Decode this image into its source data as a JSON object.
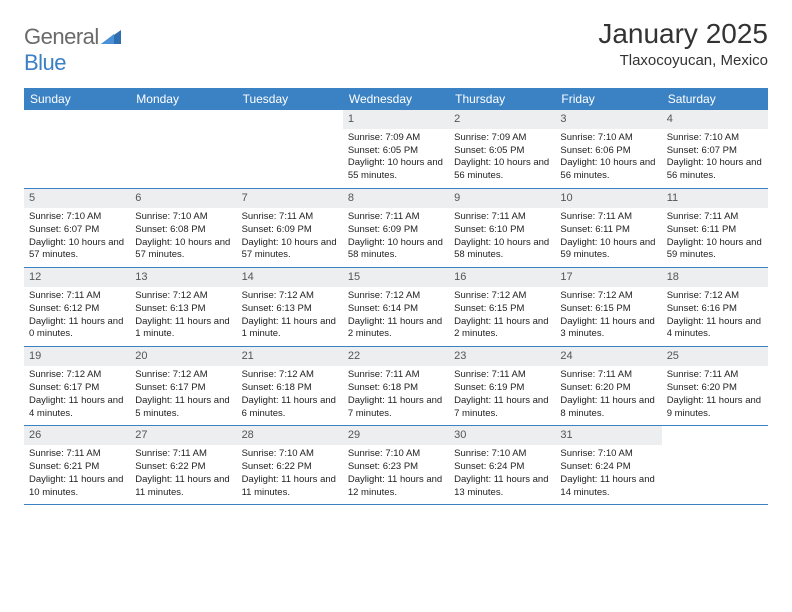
{
  "brand": {
    "part1": "General",
    "part2": "Blue"
  },
  "title": "January 2025",
  "location": "Tlaxocoyucan, Mexico",
  "colors": {
    "header_bg": "#3b82c4",
    "header_text": "#ffffff",
    "daynum_bg": "#eceeef",
    "daynum_text": "#555555",
    "border": "#3b82c4",
    "logo_gray": "#6a6a6a",
    "logo_blue": "#3b7fc4"
  },
  "weekdays": [
    "Sunday",
    "Monday",
    "Tuesday",
    "Wednesday",
    "Thursday",
    "Friday",
    "Saturday"
  ],
  "weeks": [
    [
      null,
      null,
      null,
      {
        "n": "1",
        "sr": "Sunrise: 7:09 AM",
        "ss": "Sunset: 6:05 PM",
        "dl": "Daylight: 10 hours and 55 minutes."
      },
      {
        "n": "2",
        "sr": "Sunrise: 7:09 AM",
        "ss": "Sunset: 6:05 PM",
        "dl": "Daylight: 10 hours and 56 minutes."
      },
      {
        "n": "3",
        "sr": "Sunrise: 7:10 AM",
        "ss": "Sunset: 6:06 PM",
        "dl": "Daylight: 10 hours and 56 minutes."
      },
      {
        "n": "4",
        "sr": "Sunrise: 7:10 AM",
        "ss": "Sunset: 6:07 PM",
        "dl": "Daylight: 10 hours and 56 minutes."
      }
    ],
    [
      {
        "n": "5",
        "sr": "Sunrise: 7:10 AM",
        "ss": "Sunset: 6:07 PM",
        "dl": "Daylight: 10 hours and 57 minutes."
      },
      {
        "n": "6",
        "sr": "Sunrise: 7:10 AM",
        "ss": "Sunset: 6:08 PM",
        "dl": "Daylight: 10 hours and 57 minutes."
      },
      {
        "n": "7",
        "sr": "Sunrise: 7:11 AM",
        "ss": "Sunset: 6:09 PM",
        "dl": "Daylight: 10 hours and 57 minutes."
      },
      {
        "n": "8",
        "sr": "Sunrise: 7:11 AM",
        "ss": "Sunset: 6:09 PM",
        "dl": "Daylight: 10 hours and 58 minutes."
      },
      {
        "n": "9",
        "sr": "Sunrise: 7:11 AM",
        "ss": "Sunset: 6:10 PM",
        "dl": "Daylight: 10 hours and 58 minutes."
      },
      {
        "n": "10",
        "sr": "Sunrise: 7:11 AM",
        "ss": "Sunset: 6:11 PM",
        "dl": "Daylight: 10 hours and 59 minutes."
      },
      {
        "n": "11",
        "sr": "Sunrise: 7:11 AM",
        "ss": "Sunset: 6:11 PM",
        "dl": "Daylight: 10 hours and 59 minutes."
      }
    ],
    [
      {
        "n": "12",
        "sr": "Sunrise: 7:11 AM",
        "ss": "Sunset: 6:12 PM",
        "dl": "Daylight: 11 hours and 0 minutes."
      },
      {
        "n": "13",
        "sr": "Sunrise: 7:12 AM",
        "ss": "Sunset: 6:13 PM",
        "dl": "Daylight: 11 hours and 1 minute."
      },
      {
        "n": "14",
        "sr": "Sunrise: 7:12 AM",
        "ss": "Sunset: 6:13 PM",
        "dl": "Daylight: 11 hours and 1 minute."
      },
      {
        "n": "15",
        "sr": "Sunrise: 7:12 AM",
        "ss": "Sunset: 6:14 PM",
        "dl": "Daylight: 11 hours and 2 minutes."
      },
      {
        "n": "16",
        "sr": "Sunrise: 7:12 AM",
        "ss": "Sunset: 6:15 PM",
        "dl": "Daylight: 11 hours and 2 minutes."
      },
      {
        "n": "17",
        "sr": "Sunrise: 7:12 AM",
        "ss": "Sunset: 6:15 PM",
        "dl": "Daylight: 11 hours and 3 minutes."
      },
      {
        "n": "18",
        "sr": "Sunrise: 7:12 AM",
        "ss": "Sunset: 6:16 PM",
        "dl": "Daylight: 11 hours and 4 minutes."
      }
    ],
    [
      {
        "n": "19",
        "sr": "Sunrise: 7:12 AM",
        "ss": "Sunset: 6:17 PM",
        "dl": "Daylight: 11 hours and 4 minutes."
      },
      {
        "n": "20",
        "sr": "Sunrise: 7:12 AM",
        "ss": "Sunset: 6:17 PM",
        "dl": "Daylight: 11 hours and 5 minutes."
      },
      {
        "n": "21",
        "sr": "Sunrise: 7:12 AM",
        "ss": "Sunset: 6:18 PM",
        "dl": "Daylight: 11 hours and 6 minutes."
      },
      {
        "n": "22",
        "sr": "Sunrise: 7:11 AM",
        "ss": "Sunset: 6:18 PM",
        "dl": "Daylight: 11 hours and 7 minutes."
      },
      {
        "n": "23",
        "sr": "Sunrise: 7:11 AM",
        "ss": "Sunset: 6:19 PM",
        "dl": "Daylight: 11 hours and 7 minutes."
      },
      {
        "n": "24",
        "sr": "Sunrise: 7:11 AM",
        "ss": "Sunset: 6:20 PM",
        "dl": "Daylight: 11 hours and 8 minutes."
      },
      {
        "n": "25",
        "sr": "Sunrise: 7:11 AM",
        "ss": "Sunset: 6:20 PM",
        "dl": "Daylight: 11 hours and 9 minutes."
      }
    ],
    [
      {
        "n": "26",
        "sr": "Sunrise: 7:11 AM",
        "ss": "Sunset: 6:21 PM",
        "dl": "Daylight: 11 hours and 10 minutes."
      },
      {
        "n": "27",
        "sr": "Sunrise: 7:11 AM",
        "ss": "Sunset: 6:22 PM",
        "dl": "Daylight: 11 hours and 11 minutes."
      },
      {
        "n": "28",
        "sr": "Sunrise: 7:10 AM",
        "ss": "Sunset: 6:22 PM",
        "dl": "Daylight: 11 hours and 11 minutes."
      },
      {
        "n": "29",
        "sr": "Sunrise: 7:10 AM",
        "ss": "Sunset: 6:23 PM",
        "dl": "Daylight: 11 hours and 12 minutes."
      },
      {
        "n": "30",
        "sr": "Sunrise: 7:10 AM",
        "ss": "Sunset: 6:24 PM",
        "dl": "Daylight: 11 hours and 13 minutes."
      },
      {
        "n": "31",
        "sr": "Sunrise: 7:10 AM",
        "ss": "Sunset: 6:24 PM",
        "dl": "Daylight: 11 hours and 14 minutes."
      },
      null
    ]
  ]
}
